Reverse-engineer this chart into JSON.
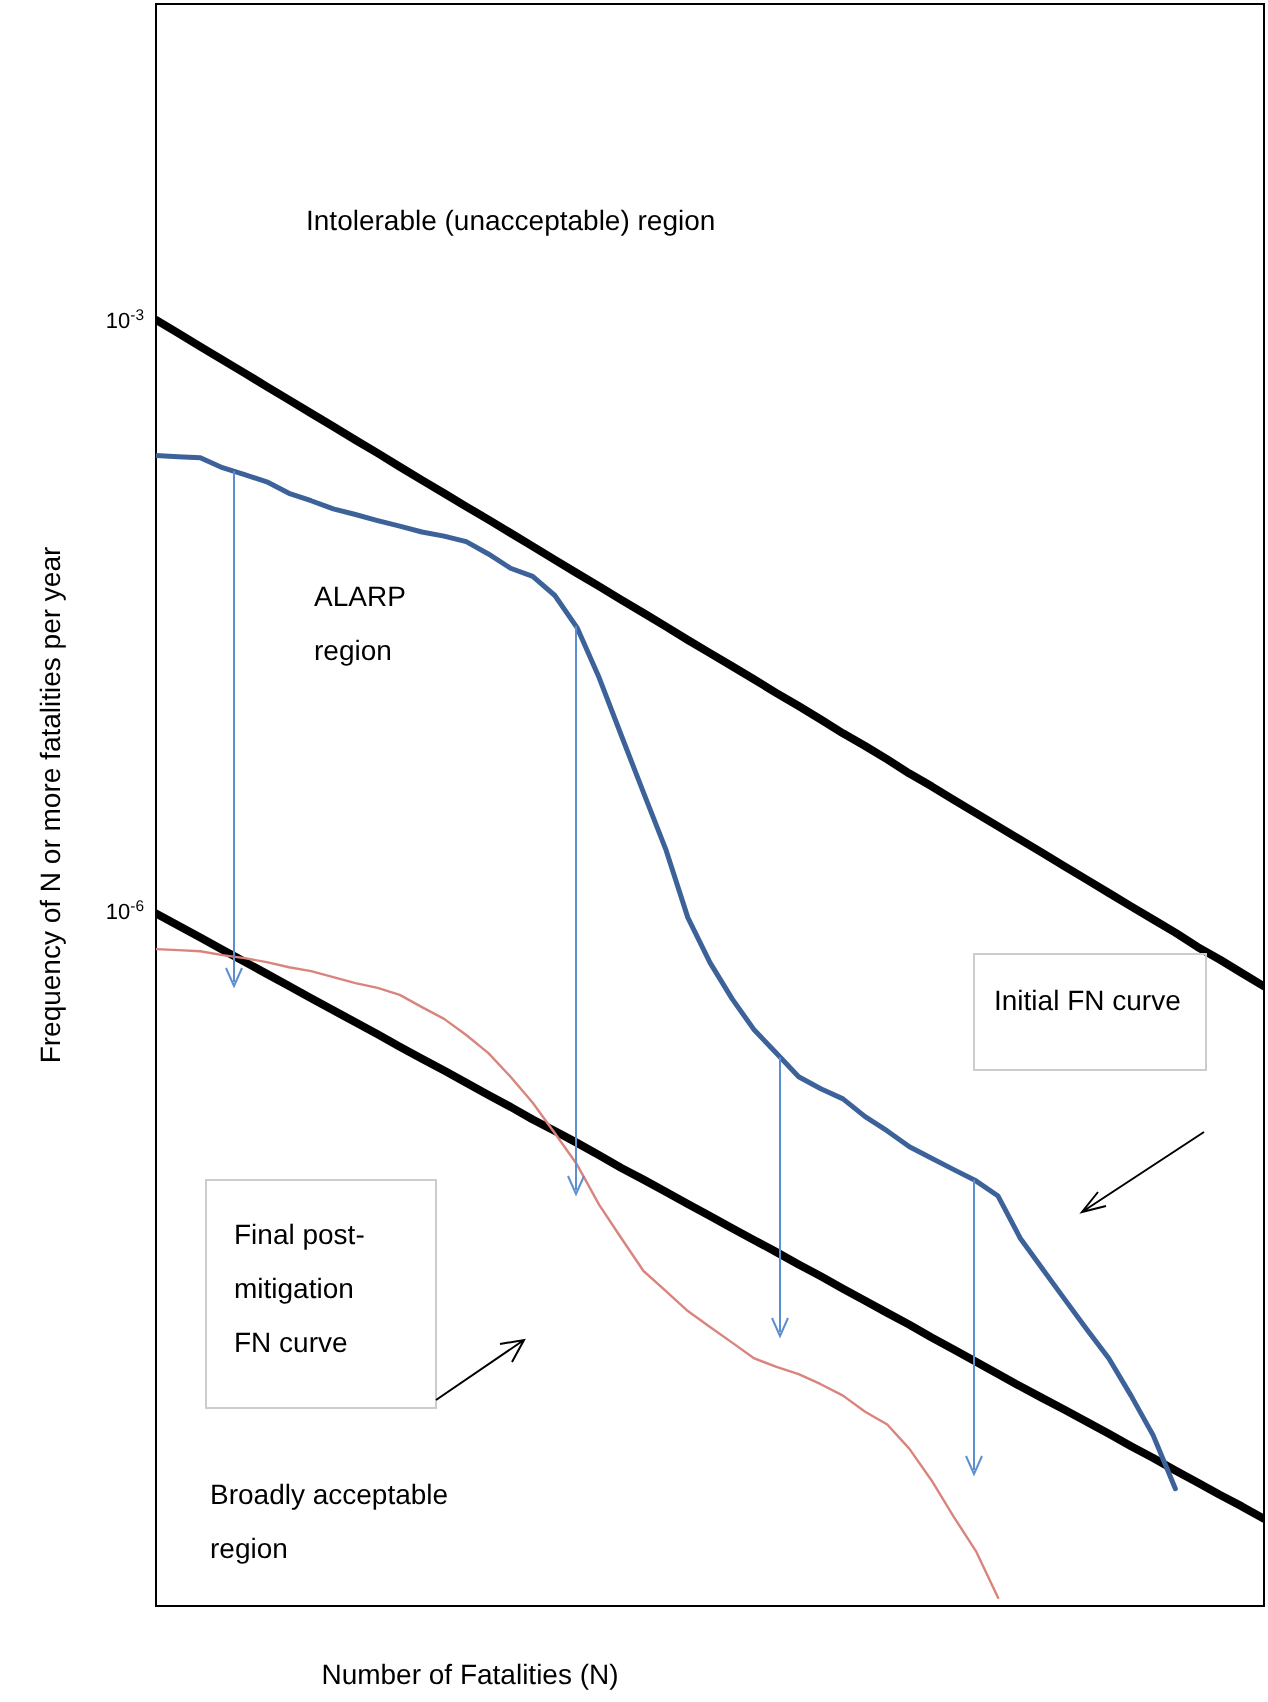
{
  "chart_data": {
    "type": "line",
    "ylabel": "Frequency of N or more fatalities per year",
    "xlabel": "Number of Fatalities (N)",
    "log": "y",
    "ylim": [
      3e-10,
      0.04
    ],
    "yticks": [
      {
        "value": 0.001,
        "label": "10$^{-3}$"
      },
      {
        "value": 1e-06,
        "label": "10$^{-6}$"
      }
    ],
    "tick_labels": "y",
    "line_style": "solid",
    "categories": [
      null,
      null,
      null,
      null,
      null,
      null,
      null,
      null,
      null,
      null,
      null,
      null,
      null,
      null,
      null,
      null,
      null,
      null,
      null,
      null,
      null,
      null,
      null,
      null,
      null,
      null,
      null,
      null,
      null,
      null,
      null,
      null,
      null,
      null,
      null,
      null,
      null,
      null,
      null,
      null,
      null,
      null,
      null,
      null,
      null,
      null,
      null,
      null,
      null,
      null,
      null
    ],
    "series": [
      {
        "color": "#000000",
        "values": [
          0.001,
          0.000856,
          0.000732,
          0.000627,
          0.000537,
          0.000459,
          0.000393,
          0.000336,
          0.000288,
          0.000246,
          0.000211,
          0.00018,
          0.000154,
          0.000132,
          0.000113,
          9.7e-05,
          8.3e-05,
          7.1e-05,
          6.07e-05,
          5.19e-05,
          4.45e-05,
          3.8e-05,
          3.26e-05,
          2.79e-05,
          2.38e-05,
          2.04e-05,
          1.75e-05,
          1.5e-05,
          1.28e-05,
          1.1e-05,
          9.4e-06,
          8e-06,
          6.9e-06,
          5.9e-06,
          5e-06,
          4.31e-06,
          3.68e-06,
          3.15e-06,
          2.7e-06,
          2.31e-06,
          1.98e-06,
          1.69e-06,
          1.45e-06,
          1.24e-06,
          1.06e-06,
          9.1e-07,
          7.8e-07,
          6.6e-07,
          5.7e-07,
          4.87e-07,
          4.17e-07
        ]
      },
      {
        "color": "#000000",
        "values": [
          9.77e-07,
          8.48e-07,
          7.37e-07,
          6.39e-07,
          5.55e-07,
          4.82e-07,
          4.18e-07,
          3.63e-07,
          3.15e-07,
          2.74e-07,
          2.38e-07,
          2.06e-07,
          1.79e-07,
          1.56e-07,
          1.35e-07,
          1.17e-07,
          1.02e-07,
          8.8e-08,
          7.7e-08,
          6.7e-08,
          5.8e-08,
          5e-08,
          4.36e-08,
          3.78e-08,
          3.28e-08,
          2.85e-08,
          2.47e-08,
          2.15e-08,
          1.87e-08,
          1.62e-08,
          1.41e-08,
          1.22e-08,
          1.06e-08,
          9.2e-09,
          8e-09,
          6.9e-09,
          6e-09,
          5.2e-09,
          4.5e-09,
          3.9e-09,
          3.4e-09,
          2.97e-09,
          2.58e-09,
          2.24e-09,
          1.94e-09,
          1.69e-09,
          1.46e-09,
          1.27e-09,
          1.1e-09,
          9.6e-10,
          8.3e-10
        ]
      },
      {
        "color": "#3c6299",
        "values": [
          0.000205,
          0.000202,
          0.0002,
          0.000178,
          0.000164,
          0.000151,
          0.000132,
          0.000121,
          0.00011,
          0.000103,
          9.6e-05,
          9e-05,
          8.4e-05,
          8e-05,
          7.5e-05,
          6.5e-05,
          5.5e-05,
          5e-05,
          4e-05,
          2.75e-05,
          1.53e-05,
          7.8e-06,
          4e-06,
          2.07e-06,
          9.3e-07,
          5.5e-07,
          3.6e-07,
          2.5e-07,
          1.91e-07,
          1.45e-07,
          1.26e-07,
          1.12e-07,
          9.1e-08,
          7.7e-08,
          6.4e-08,
          5.6e-08,
          4.9e-08,
          4.3e-08,
          3.6e-08,
          2.2e-08,
          1.54e-08,
          1.08e-08,
          7.6e-09,
          5.4e-09,
          3.5e-09,
          2.2e-09,
          1.18e-09,
          null,
          null,
          null,
          null
        ]
      },
      {
        "color": "#d9847c",
        "values": [
          6.44e-07,
          6.36e-07,
          6.28e-07,
          6e-07,
          5.79e-07,
          5.53e-07,
          5.21e-07,
          4.98e-07,
          4.64e-07,
          4.33e-07,
          4.09e-07,
          3.77e-07,
          3.27e-07,
          2.85e-07,
          2.36e-07,
          1.91e-07,
          1.45e-07,
          1.07e-07,
          7.5e-08,
          5.2e-08,
          3.25e-08,
          2.2e-08,
          1.5e-08,
          1.19e-08,
          9.4e-09,
          7.8e-09,
          6.5e-09,
          5.4e-09,
          4.9e-09,
          4.5e-09,
          4e-09,
          3.5e-09,
          2.9e-09,
          2.5e-09,
          1.88e-09,
          1.3e-09,
          8.5e-10,
          5.7e-10,
          3.3e-10,
          null,
          null,
          null,
          null,
          null,
          null,
          null,
          null,
          null,
          null,
          null,
          null
        ]
      }
    ],
    "annotations": [
      "Intolerable (unacceptable) region",
      "ALARP region",
      "Initial FN curve",
      "Final post-mitigation FN curve",
      "Broadly acceptable region"
    ]
  }
}
